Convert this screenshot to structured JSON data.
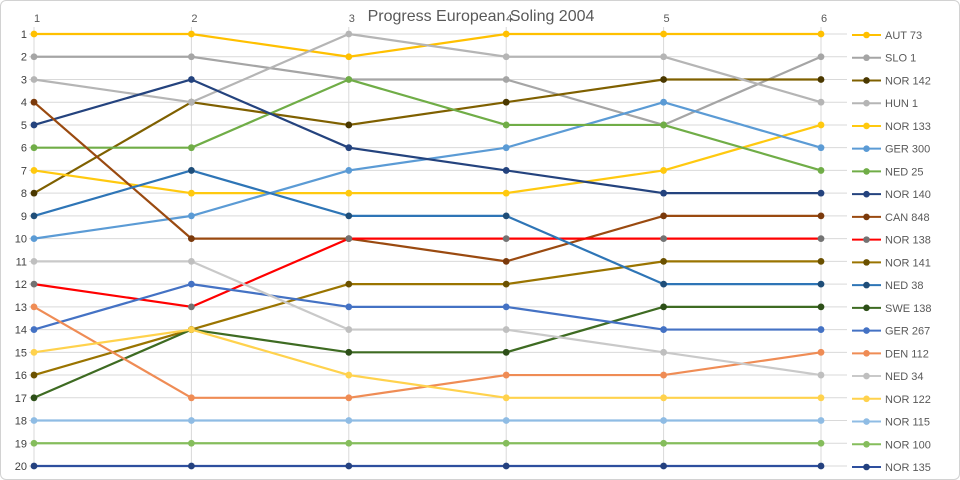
{
  "chart_data": {
    "type": "line",
    "subtype": "bump-rank-chart",
    "title": "Progress European Soling 2004",
    "x_axis": {
      "position": "top",
      "ticks": [
        "1",
        "2",
        "3",
        "4",
        "5",
        "6"
      ]
    },
    "y_axis": {
      "min": 1,
      "max": 20,
      "inverted": true,
      "ticks": [
        "1",
        "2",
        "3",
        "4",
        "5",
        "6",
        "7",
        "8",
        "9",
        "10",
        "11",
        "12",
        "13",
        "14",
        "15",
        "16",
        "17",
        "18",
        "19",
        "20"
      ]
    },
    "grid": true,
    "legend_position": "right",
    "grid_color": "#d9d9d9",
    "axis_label_color": "#595959",
    "y_label_color": "#404040",
    "legend_text_color": "#595959",
    "series": [
      {
        "name": "AUT 73",
        "color": "#FFC000",
        "marker": "#FFC000",
        "ranks": [
          1,
          1,
          2,
          1,
          1,
          1
        ]
      },
      {
        "name": "SLO 1",
        "color": "#A5A5A5",
        "marker": "#A5A5A5",
        "ranks": [
          2,
          2,
          3,
          3,
          5,
          2
        ]
      },
      {
        "name": "NOR 142",
        "color": "#7F6000",
        "marker": "#4A3800",
        "ranks": [
          8,
          4,
          5,
          4,
          3,
          3
        ]
      },
      {
        "name": "HUN 1",
        "color": "#B5B5B5",
        "marker": "#B5B5B5",
        "ranks": [
          3,
          4,
          1,
          2,
          2,
          4
        ]
      },
      {
        "name": "NOR 133",
        "color": "#FFC90F",
        "marker": "#FFC90F",
        "ranks": [
          7,
          8,
          8,
          8,
          7,
          5
        ]
      },
      {
        "name": "GER 300",
        "color": "#5B9BD5",
        "marker": "#5B9BD5",
        "ranks": [
          10,
          9,
          7,
          6,
          4,
          6
        ]
      },
      {
        "name": "NED 25",
        "color": "#70AD47",
        "marker": "#70AD47",
        "ranks": [
          6,
          6,
          3,
          5,
          5,
          7
        ]
      },
      {
        "name": "NOR 140",
        "color": "#24437E",
        "marker": "#24437E",
        "ranks": [
          5,
          3,
          6,
          7,
          8,
          8
        ]
      },
      {
        "name": "CAN 848",
        "color": "#9A4A10",
        "marker": "#7B3A0C",
        "ranks": [
          4,
          10,
          10,
          11,
          9,
          9
        ]
      },
      {
        "name": "NOR 138",
        "color": "#FF0000",
        "marker": "#737373",
        "ranks": [
          12,
          13,
          10,
          10,
          10,
          10
        ]
      },
      {
        "name": "NOR 141",
        "color": "#9A7400",
        "marker": "#6B5100",
        "ranks": [
          16,
          14,
          12,
          12,
          11,
          11
        ]
      },
      {
        "name": "NED 38",
        "color": "#2E75B6",
        "marker": "#1F4E79",
        "ranks": [
          9,
          7,
          9,
          9,
          12,
          12
        ]
      },
      {
        "name": "SWE 138",
        "color": "#3E6B22",
        "marker": "#2D4F18",
        "ranks": [
          17,
          14,
          15,
          15,
          13,
          13
        ]
      },
      {
        "name": "GER 267",
        "color": "#4472C4",
        "marker": "#4472C4",
        "ranks": [
          14,
          12,
          13,
          13,
          14,
          14
        ]
      },
      {
        "name": "DEN 112",
        "color": "#EF8C55",
        "marker": "#EF8C55",
        "ranks": [
          13,
          17,
          17,
          16,
          16,
          15
        ]
      },
      {
        "name": "NED 34",
        "color": "#C9C9C9",
        "marker": "#BFBFBF",
        "ranks": [
          11,
          11,
          14,
          14,
          15,
          16
        ]
      },
      {
        "name": "NOR 122",
        "color": "#FFD24D",
        "marker": "#FFD24D",
        "ranks": [
          15,
          14,
          16,
          17,
          17,
          17
        ]
      },
      {
        "name": "NOR 115",
        "color": "#8FBCE4",
        "marker": "#8FBCE4",
        "ranks": [
          18,
          18,
          18,
          18,
          18,
          18
        ]
      },
      {
        "name": "NOR 100",
        "color": "#85BD5C",
        "marker": "#85BD5C",
        "ranks": [
          19,
          19,
          19,
          19,
          19,
          19
        ]
      },
      {
        "name": "NOR 135",
        "color": "#2E4F9E",
        "marker": "#24417F",
        "ranks": [
          20,
          20,
          20,
          20,
          20,
          20
        ]
      }
    ]
  }
}
